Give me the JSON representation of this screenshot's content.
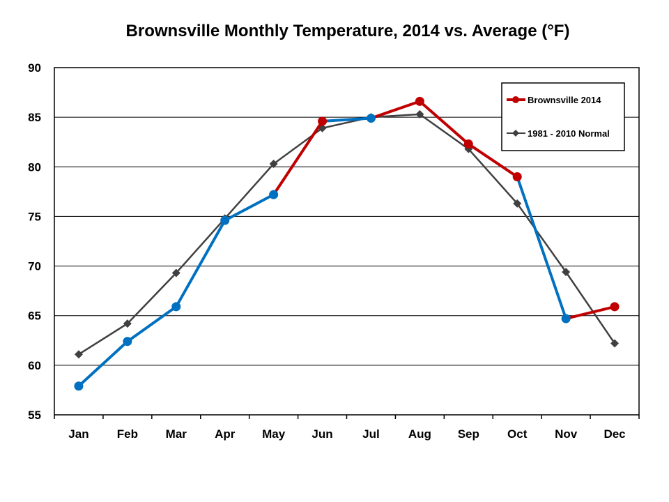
{
  "chart_data": {
    "type": "line",
    "title": "Brownsville Monthly Temperature, 2014 vs. Average (°F)",
    "xlabel": "",
    "ylabel": "",
    "categories": [
      "Jan",
      "Feb",
      "Mar",
      "Apr",
      "May",
      "Jun",
      "Jul",
      "Aug",
      "Sep",
      "Oct",
      "Nov",
      "Dec"
    ],
    "ylim": [
      55,
      90
    ],
    "yticks": [
      "55",
      "60",
      "65",
      "70",
      "75",
      "80",
      "85",
      "90"
    ],
    "grid": "horizontal",
    "legend_position": "top-right",
    "series": [
      {
        "name": "Brownsville 2014",
        "values": [
          57.9,
          62.4,
          65.9,
          74.6,
          77.2,
          84.6,
          84.9,
          86.6,
          82.3,
          79.0,
          64.7,
          65.9
        ],
        "color": "#C00000",
        "below_normal_color": "#0070C0",
        "marker": "circle"
      },
      {
        "name": "1981 - 2010 Normal",
        "values": [
          61.1,
          64.2,
          69.3,
          74.8,
          80.3,
          83.9,
          85.0,
          85.3,
          81.8,
          76.3,
          69.4,
          62.2
        ],
        "color": "#404040",
        "marker": "diamond"
      }
    ]
  }
}
